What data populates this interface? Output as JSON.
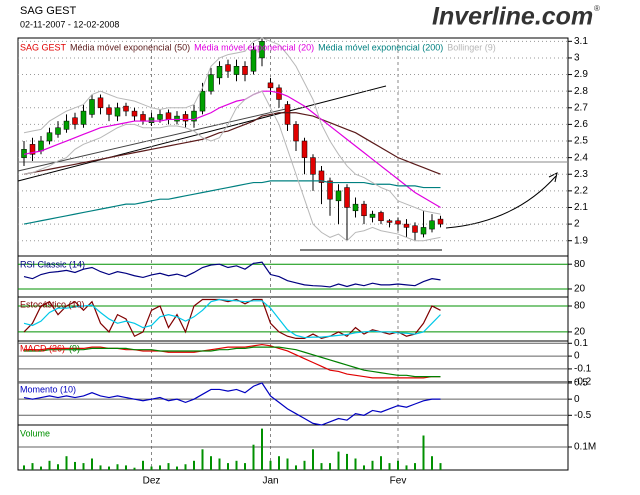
{
  "chart_data": [
    {
      "type": "candlestick",
      "title": "SAG GEST",
      "subtitle": "02-11-2007 - 12-02-2008",
      "logo": "Inverline.com",
      "logo_mark": "®",
      "categories": [
        null,
        null,
        null,
        null,
        null,
        null,
        null,
        null,
        null,
        null,
        null,
        null,
        null,
        null,
        null,
        "Dez",
        null,
        null,
        null,
        null,
        null,
        null,
        null,
        null,
        null,
        null,
        null,
        null,
        null,
        "Jan",
        null,
        null,
        null,
        null,
        null,
        null,
        null,
        null,
        null,
        null,
        null,
        null,
        null,
        null,
        "Fev",
        null,
        null,
        null,
        null,
        null
      ],
      "ylim": [
        1.82,
        3.12
      ],
      "yticks": [
        3.1,
        3,
        2.9,
        2.8,
        2.7,
        2.6,
        2.5,
        2.4,
        2.3,
        2.2,
        2.1,
        2,
        1.9
      ],
      "grid": true,
      "up_color": "#00a000",
      "down_color": "#e00000",
      "series": [
        {
          "name": "SAG GEST",
          "color": "#e00000",
          "open": [
            2.4,
            2.48,
            2.44,
            2.5,
            2.54,
            2.57,
            2.64,
            2.6,
            2.66,
            2.76,
            2.7,
            2.65,
            2.71,
            2.68,
            2.66,
            2.61,
            2.63,
            2.67,
            2.62,
            2.66,
            2.62,
            2.68,
            2.8,
            2.88,
            2.96,
            2.9,
            2.95,
            2.92,
            3.0,
            2.85,
            2.82,
            2.72,
            2.6,
            2.5,
            2.4,
            2.32,
            2.26,
            2.14,
            2.22,
            2.08,
            2.12,
            2.04,
            2.07,
            2.02,
            2.02,
            2.0,
            1.99,
            1.94,
            1.97,
            2.03
          ],
          "high": [
            2.5,
            2.52,
            2.53,
            2.58,
            2.62,
            2.66,
            2.67,
            2.72,
            2.78,
            2.78,
            2.72,
            2.73,
            2.73,
            2.7,
            2.68,
            2.67,
            2.69,
            2.69,
            2.68,
            2.68,
            2.72,
            2.85,
            2.94,
            2.98,
            2.99,
            2.99,
            2.98,
            3.09,
            3.12,
            2.88,
            2.84,
            2.74,
            2.62,
            2.52,
            2.42,
            2.35,
            2.28,
            2.24,
            2.24,
            2.16,
            2.14,
            2.08,
            2.08,
            2.03,
            2.04,
            2.03,
            2.01,
            2.08,
            2.06,
            2.05
          ],
          "low": [
            2.35,
            2.38,
            2.42,
            2.48,
            2.52,
            2.55,
            2.57,
            2.58,
            2.64,
            2.66,
            2.62,
            2.62,
            2.65,
            2.62,
            2.6,
            2.59,
            2.61,
            2.6,
            2.6,
            2.58,
            2.58,
            2.66,
            2.78,
            2.84,
            2.88,
            2.86,
            2.86,
            2.9,
            2.95,
            2.78,
            2.7,
            2.56,
            2.44,
            2.3,
            2.2,
            2.12,
            2.05,
            2.0,
            1.9,
            2.04,
            2.0,
            2.01,
            2.0,
            1.98,
            1.96,
            1.92,
            1.9,
            1.92,
            1.95,
            1.98
          ],
          "close": [
            2.45,
            2.42,
            2.5,
            2.55,
            2.58,
            2.62,
            2.6,
            2.68,
            2.75,
            2.7,
            2.66,
            2.7,
            2.68,
            2.65,
            2.62,
            2.64,
            2.66,
            2.63,
            2.65,
            2.62,
            2.68,
            2.8,
            2.9,
            2.95,
            2.92,
            2.95,
            2.9,
            3.05,
            3.1,
            2.82,
            2.75,
            2.6,
            2.5,
            2.4,
            2.3,
            2.25,
            2.15,
            2.2,
            2.1,
            2.12,
            2.05,
            2.06,
            2.02,
            2.01,
            2.0,
            1.98,
            1.95,
            1.98,
            2.02,
            2.0
          ]
        },
        {
          "name": "Média móvel exponencial (50)",
          "color": "#5a1a1a",
          "values": [
            2.3,
            2.31,
            2.32,
            2.33,
            2.34,
            2.35,
            2.36,
            2.37,
            2.38,
            2.39,
            2.4,
            2.41,
            2.42,
            2.43,
            2.44,
            2.45,
            2.46,
            2.47,
            2.48,
            2.49,
            2.5,
            2.51,
            2.53,
            2.55,
            2.56,
            2.58,
            2.6,
            2.62,
            2.65,
            2.66,
            2.67,
            2.67,
            2.67,
            2.66,
            2.65,
            2.63,
            2.61,
            2.59,
            2.57,
            2.55,
            2.52,
            2.49,
            2.46,
            2.43,
            2.4,
            2.38,
            2.36,
            2.34,
            2.32,
            2.3
          ]
        },
        {
          "name": "Média móvel exponencial (20)",
          "color": "#e000e0",
          "values": [
            2.42,
            2.43,
            2.44,
            2.46,
            2.48,
            2.5,
            2.52,
            2.54,
            2.56,
            2.58,
            2.59,
            2.6,
            2.61,
            2.62,
            2.62,
            2.62,
            2.62,
            2.63,
            2.63,
            2.63,
            2.63,
            2.65,
            2.67,
            2.7,
            2.72,
            2.74,
            2.75,
            2.78,
            2.8,
            2.8,
            2.79,
            2.77,
            2.74,
            2.71,
            2.67,
            2.63,
            2.59,
            2.55,
            2.51,
            2.47,
            2.43,
            2.39,
            2.35,
            2.31,
            2.27,
            2.23,
            2.19,
            2.16,
            2.13,
            2.1
          ]
        },
        {
          "name": "Média móvel exponencial (200)",
          "color": "#008080",
          "values": [
            2.0,
            2.01,
            2.02,
            2.03,
            2.04,
            2.05,
            2.06,
            2.07,
            2.08,
            2.09,
            2.1,
            2.11,
            2.12,
            2.12,
            2.13,
            2.14,
            2.15,
            2.15,
            2.16,
            2.17,
            2.18,
            2.19,
            2.2,
            2.21,
            2.22,
            2.23,
            2.24,
            2.25,
            2.25,
            2.26,
            2.26,
            2.26,
            2.26,
            2.26,
            2.26,
            2.26,
            2.25,
            2.25,
            2.25,
            2.25,
            2.25,
            2.24,
            2.24,
            2.24,
            2.23,
            2.23,
            2.23,
            2.22,
            2.22,
            2.22
          ]
        },
        {
          "name": "Bollinger (9)",
          "color": "#b8b8b8",
          "upper": [
            2.55,
            2.56,
            2.57,
            2.62,
            2.65,
            2.68,
            2.7,
            2.72,
            2.78,
            2.8,
            2.78,
            2.76,
            2.75,
            2.74,
            2.72,
            2.7,
            2.69,
            2.7,
            2.7,
            2.7,
            2.72,
            2.82,
            2.95,
            3.0,
            3.02,
            3.03,
            3.04,
            3.1,
            3.12,
            3.1,
            3.08,
            3.02,
            2.95,
            2.85,
            2.75,
            2.6,
            2.5,
            2.42,
            2.35,
            2.3,
            2.28,
            2.25,
            2.22,
            2.2,
            2.14,
            2.12,
            2.1,
            2.08,
            2.07,
            2.06
          ],
          "lower": [
            2.3,
            2.31,
            2.33,
            2.35,
            2.38,
            2.4,
            2.45,
            2.48,
            2.5,
            2.52,
            2.55,
            2.58,
            2.6,
            2.6,
            2.58,
            2.58,
            2.58,
            2.59,
            2.59,
            2.58,
            2.56,
            2.52,
            2.5,
            2.52,
            2.6,
            2.7,
            2.75,
            2.78,
            2.8,
            2.7,
            2.6,
            2.45,
            2.3,
            2.15,
            2.0,
            1.95,
            1.92,
            1.94,
            1.9,
            1.95,
            1.96,
            1.98,
            1.96,
            1.95,
            1.94,
            1.92,
            1.9,
            1.9,
            1.91,
            1.92
          ]
        }
      ]
    },
    {
      "type": "line",
      "ylim": [
        3,
        95
      ],
      "yticks": [
        80,
        20
      ],
      "grid": true,
      "grid_color": "#009000",
      "series": [
        {
          "name": "RSI Classic (14)",
          "color": "#000080",
          "values": [
            50,
            45,
            55,
            60,
            62,
            65,
            60,
            68,
            72,
            62,
            55,
            62,
            58,
            52,
            48,
            54,
            58,
            52,
            56,
            50,
            60,
            72,
            78,
            80,
            72,
            76,
            68,
            82,
            85,
            55,
            50,
            40,
            35,
            30,
            28,
            27,
            25,
            32,
            26,
            32,
            28,
            34,
            30,
            30,
            32,
            30,
            28,
            38,
            45,
            42
          ]
        }
      ]
    },
    {
      "type": "line",
      "ylim": [
        -1,
        98.5
      ],
      "yticks": [
        80,
        20
      ],
      "grid": true,
      "grid_color": "#009000",
      "series": [
        {
          "name": "Estocástico (10)",
          "color": "#800000",
          "values": [
            20,
            40,
            80,
            90,
            60,
            80,
            90,
            70,
            90,
            40,
            20,
            60,
            50,
            10,
            20,
            70,
            80,
            30,
            60,
            20,
            80,
            95,
            95,
            95,
            90,
            95,
            85,
            95,
            95,
            40,
            20,
            10,
            5,
            5,
            15,
            5,
            10,
            20,
            10,
            30,
            15,
            25,
            20,
            15,
            20,
            10,
            15,
            40,
            80,
            70
          ]
        },
        {
          "color": "#00c8e8",
          "values": [
            40,
            35,
            45,
            65,
            75,
            75,
            78,
            80,
            82,
            65,
            50,
            40,
            45,
            40,
            30,
            35,
            55,
            60,
            55,
            45,
            55,
            70,
            90,
            95,
            93,
            92,
            90,
            92,
            92,
            75,
            50,
            25,
            12,
            7,
            8,
            8,
            10,
            12,
            14,
            18,
            20,
            22,
            20,
            20,
            18,
            17,
            15,
            20,
            40,
            60
          ]
        }
      ]
    },
    {
      "type": "line",
      "ylim": [
        -0.21,
        0.11
      ],
      "yticks": [
        0.1,
        0,
        -0.1,
        -0.2
      ],
      "grid": true,
      "grid_color": "#606060",
      "series": [
        {
          "name": "MACD (26)",
          "color": "#e00000",
          "values": [
            0.05,
            0.05,
            0.05,
            0.06,
            0.06,
            0.06,
            0.06,
            0.06,
            0.07,
            0.07,
            0.06,
            0.06,
            0.05,
            0.05,
            0.04,
            0.04,
            0.04,
            0.03,
            0.03,
            0.03,
            0.03,
            0.04,
            0.05,
            0.06,
            0.07,
            0.07,
            0.07,
            0.08,
            0.09,
            0.08,
            0.06,
            0.04,
            0.01,
            -0.02,
            -0.05,
            -0.08,
            -0.11,
            -0.12,
            -0.14,
            -0.15,
            -0.16,
            -0.17,
            -0.17,
            -0.17,
            -0.17,
            -0.17,
            -0.17,
            -0.17,
            -0.16,
            -0.16
          ]
        },
        {
          "name": "(9)",
          "color": "#008000",
          "values": [
            0.04,
            0.04,
            0.04,
            0.05,
            0.05,
            0.05,
            0.05,
            0.05,
            0.06,
            0.06,
            0.06,
            0.06,
            0.06,
            0.05,
            0.05,
            0.05,
            0.04,
            0.04,
            0.04,
            0.04,
            0.04,
            0.04,
            0.04,
            0.05,
            0.05,
            0.06,
            0.06,
            0.07,
            0.07,
            0.07,
            0.07,
            0.06,
            0.05,
            0.03,
            0.01,
            -0.01,
            -0.03,
            -0.05,
            -0.07,
            -0.09,
            -0.11,
            -0.12,
            -0.13,
            -0.14,
            -0.15,
            -0.15,
            -0.16,
            -0.16,
            -0.16,
            -0.16
          ]
        }
      ]
    },
    {
      "type": "line",
      "ylim": [
        -0.8,
        0.5
      ],
      "yticks": [
        0.5,
        0,
        -0.5
      ],
      "grid": true,
      "grid_color": "#606060",
      "series": [
        {
          "name": "Momento (10)",
          "color": "#0000c0",
          "values": [
            0.05,
            0,
            0.05,
            0.1,
            0.05,
            0.1,
            0.05,
            0.1,
            0.2,
            0.1,
            0.05,
            0.1,
            0.05,
            0,
            -0.05,
            0,
            0.05,
            -0.05,
            0,
            -0.1,
            0,
            0.15,
            0.3,
            0.3,
            0.25,
            0.3,
            0.2,
            0.4,
            0.5,
            0.1,
            -0.1,
            -0.3,
            -0.45,
            -0.6,
            -0.75,
            -0.8,
            -0.7,
            -0.6,
            -0.65,
            -0.45,
            -0.5,
            -0.35,
            -0.4,
            -0.3,
            -0.2,
            -0.25,
            -0.15,
            -0.05,
            0,
            0
          ]
        }
      ]
    },
    {
      "type": "bar",
      "ylim": [
        0,
        187000
      ],
      "yticks": [
        {
          "value": 100000,
          "label": "0.1M"
        }
      ],
      "grid": true,
      "grid_color": "#606060",
      "series": [
        {
          "name": "Volume",
          "color": "#009000",
          "values": [
            20000,
            30000,
            15000,
            40000,
            25000,
            60000,
            35000,
            30000,
            50000,
            20000,
            15000,
            25000,
            20000,
            10000,
            40000,
            15000,
            20000,
            30000,
            15000,
            25000,
            40000,
            90000,
            60000,
            50000,
            30000,
            40000,
            30000,
            110000,
            180000,
            40000,
            60000,
            50000,
            20000,
            40000,
            90000,
            30000,
            30000,
            80000,
            70000,
            50000,
            20000,
            40000,
            60000,
            30000,
            40000,
            20000,
            30000,
            150000,
            60000,
            30000
          ]
        }
      ]
    }
  ]
}
